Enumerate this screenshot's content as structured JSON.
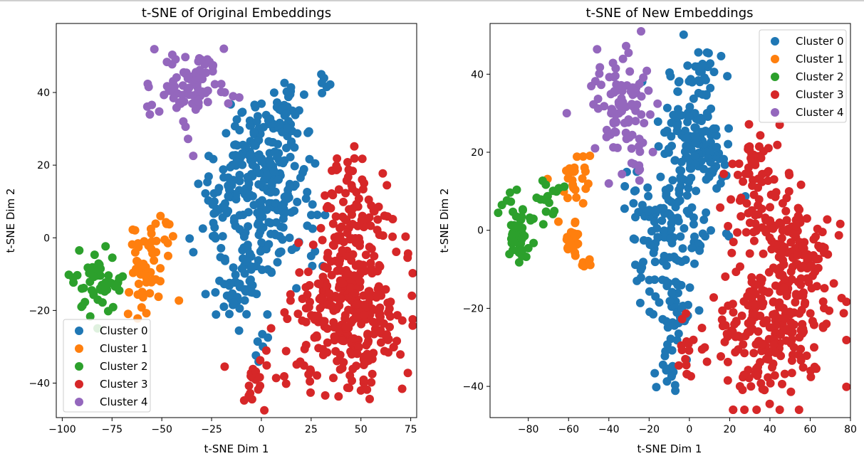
{
  "charts": [
    {
      "type": "scatter",
      "title": "t-SNE of Original Embeddings",
      "xlabel": "t-SNE Dim 1",
      "ylabel": "t-SNE Dim 2",
      "xlim": [
        -103,
        78
      ],
      "ylim": [
        -49.5,
        59
      ],
      "xticks": [
        -100,
        -75,
        -50,
        -25,
        0,
        25,
        50,
        75
      ],
      "xtick_labels": [
        "−100",
        "−75",
        "−50",
        "−25",
        "0",
        "25",
        "50",
        "75"
      ],
      "yticks": [
        -40,
        -20,
        0,
        20,
        40
      ],
      "ytick_labels": [
        "−40",
        "−20",
        "0",
        "20",
        "40"
      ],
      "legend_position": "lower-left",
      "series": [
        {
          "name": "Cluster 0",
          "color": "#1f77b4",
          "clusters": [
            {
              "cx": 0,
              "cy": 20,
              "sx": 9,
              "sy": 9,
              "n": 160
            },
            {
              "cx": -20,
              "cy": 10,
              "sx": 8,
              "sy": 8,
              "n": 60
            },
            {
              "cx": 10,
              "cy": 5,
              "sx": 9,
              "sy": 9,
              "n": 80
            },
            {
              "cx": -10,
              "cy": -12,
              "sx": 6,
              "sy": 6,
              "n": 55
            },
            {
              "cx": 15,
              "cy": 38,
              "sx": 5,
              "sy": 5,
              "n": 20
            },
            {
              "cx": 32,
              "cy": 42,
              "sx": 2,
              "sy": 2,
              "n": 6
            },
            {
              "cx": 0,
              "cy": -28,
              "sx": 3,
              "sy": 3,
              "n": 6
            }
          ]
        },
        {
          "name": "Cluster 1",
          "color": "#ff7f0e",
          "clusters": [
            {
              "cx": -57,
              "cy": -9,
              "sx": 5,
              "sy": 6,
              "n": 55
            },
            {
              "cx": -47,
              "cy": 2,
              "sx": 2.5,
              "sy": 2.5,
              "n": 6
            }
          ]
        },
        {
          "name": "Cluster 2",
          "color": "#2ca02c",
          "clusters": [
            {
              "cx": -82,
              "cy": -12,
              "sx": 6,
              "sy": 5,
              "n": 55
            }
          ]
        },
        {
          "name": "Cluster 3",
          "color": "#d62728",
          "clusters": [
            {
              "cx": 45,
              "cy": -20,
              "sx": 14,
              "sy": 11,
              "n": 300
            },
            {
              "cx": 50,
              "cy": 5,
              "sx": 12,
              "sy": 7,
              "n": 60
            },
            {
              "cx": 40,
              "cy": 20,
              "sx": 4,
              "sy": 3,
              "n": 12
            },
            {
              "cx": -5,
              "cy": -42,
              "sx": 3,
              "sy": 2,
              "n": 8
            },
            {
              "cx": 10,
              "cy": -38,
              "sx": 10,
              "sy": 5,
              "n": 20
            }
          ]
        },
        {
          "name": "Cluster 4",
          "color": "#9467bd",
          "clusters": [
            {
              "cx": -33,
              "cy": 42,
              "sx": 8,
              "sy": 6,
              "n": 80
            },
            {
              "cx": -55,
              "cy": 35,
              "sx": 3,
              "sy": 3,
              "n": 6
            }
          ]
        }
      ]
    },
    {
      "type": "scatter",
      "title": "t-SNE of New Embeddings",
      "xlabel": "t-SNE Dim 1",
      "ylabel": "t-SNE Dim 2",
      "xlim": [
        -99,
        80
      ],
      "ylim": [
        -48,
        53
      ],
      "xticks": [
        -80,
        -60,
        -40,
        -20,
        0,
        20,
        40,
        60,
        80
      ],
      "xtick_labels": [
        "−80",
        "−60",
        "−40",
        "−20",
        "0",
        "20",
        "40",
        "60",
        "80"
      ],
      "yticks": [
        -40,
        -20,
        0,
        20,
        40
      ],
      "ytick_labels": [
        "−40",
        "−20",
        "0",
        "20",
        "40"
      ],
      "legend_position": "top-right",
      "series": [
        {
          "name": "Cluster 0",
          "color": "#1f77b4",
          "clusters": [
            {
              "cx": 2,
              "cy": 22,
              "sx": 9,
              "sy": 10,
              "n": 150
            },
            {
              "cx": -15,
              "cy": 0,
              "sx": 9,
              "sy": 8,
              "n": 110
            },
            {
              "cx": -8,
              "cy": -20,
              "sx": 5,
              "sy": 6,
              "n": 40
            },
            {
              "cx": 5,
              "cy": 40,
              "sx": 4,
              "sy": 4,
              "n": 20
            },
            {
              "cx": -10,
              "cy": -37,
              "sx": 3,
              "sy": 3,
              "n": 15
            }
          ]
        },
        {
          "name": "Cluster 1",
          "color": "#ff7f0e",
          "clusters": [
            {
              "cx": -57,
              "cy": 13,
              "sx": 4,
              "sy": 3,
              "n": 25
            },
            {
              "cx": -58,
              "cy": -2,
              "sx": 3,
              "sy": 3,
              "n": 25
            },
            {
              "cx": -52,
              "cy": -8,
              "sx": 2,
              "sy": 2,
              "n": 6
            }
          ]
        },
        {
          "name": "Cluster 2",
          "color": "#2ca02c",
          "clusters": [
            {
              "cx": -85,
              "cy": 0,
              "sx": 4,
              "sy": 3.5,
              "n": 55
            },
            {
              "cx": -70,
              "cy": 8,
              "sx": 3,
              "sy": 4,
              "n": 15
            }
          ]
        },
        {
          "name": "Cluster 3",
          "color": "#d62728",
          "clusters": [
            {
              "cx": 40,
              "cy": -25,
              "sx": 15,
              "sy": 9,
              "n": 230
            },
            {
              "cx": 55,
              "cy": -5,
              "sx": 8,
              "sy": 6,
              "n": 90
            },
            {
              "cx": 35,
              "cy": 8,
              "sx": 8,
              "sy": 7,
              "n": 70
            },
            {
              "cx": 30,
              "cy": 18,
              "sx": 4,
              "sy": 3,
              "n": 15
            },
            {
              "cx": -2,
              "cy": -30,
              "sx": 4,
              "sy": 4,
              "n": 15
            }
          ]
        },
        {
          "name": "Cluster 4",
          "color": "#9467bd",
          "clusters": [
            {
              "cx": -33,
              "cy": 32,
              "sx": 8,
              "sy": 7,
              "n": 90
            },
            {
              "cx": -25,
              "cy": 15,
              "sx": 3,
              "sy": 3,
              "n": 8
            }
          ]
        }
      ]
    }
  ]
}
